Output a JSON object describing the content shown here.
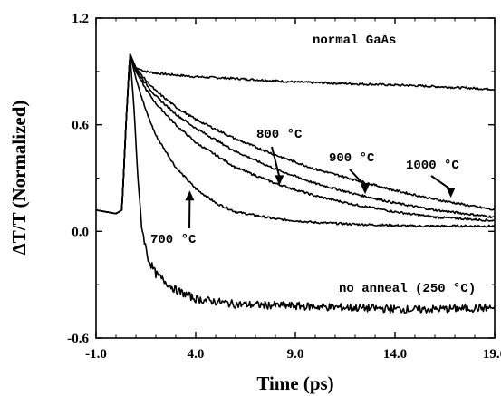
{
  "chart_data": {
    "type": "line",
    "title": "",
    "xlabel": "Time (ps)",
    "ylabel": "ΔT/T (Normalized)",
    "xlim": [
      -1.0,
      19.0
    ],
    "ylim": [
      -0.6,
      1.2
    ],
    "xticks": [
      -1.0,
      4.0,
      9.0,
      14.0,
      19.0
    ],
    "xtick_labels": [
      "-1.0",
      "4.0",
      "9.0",
      "14.0",
      "19.0"
    ],
    "yticks": [
      -0.6,
      0.0,
      0.6,
      1.2
    ],
    "ytick_labels": [
      "-0.6",
      "0.0",
      "0.6",
      "1.2"
    ],
    "grid": false,
    "legend": "none",
    "series": [
      {
        "name": "normal GaAs",
        "x": [
          -1.0,
          0.0,
          0.3,
          0.5,
          0.7,
          1.0,
          1.5,
          2.0,
          4.0,
          6.0,
          9.0,
          12.0,
          15.0,
          17.0,
          19.0
        ],
        "y": [
          0.12,
          0.1,
          0.12,
          0.6,
          1.0,
          0.92,
          0.9,
          0.89,
          0.87,
          0.86,
          0.84,
          0.83,
          0.82,
          0.81,
          0.8
        ]
      },
      {
        "name": "700 °C",
        "x": [
          -1.0,
          0.0,
          0.3,
          0.5,
          0.7,
          1.0,
          1.5,
          2.0,
          3.0,
          4.0,
          5.0,
          6.0,
          8.0,
          10.0,
          12.0,
          15.0,
          19.0
        ],
        "y": [
          0.12,
          0.1,
          0.12,
          0.6,
          1.0,
          0.86,
          0.68,
          0.54,
          0.36,
          0.24,
          0.16,
          0.11,
          0.07,
          0.05,
          0.04,
          0.03,
          0.03
        ]
      },
      {
        "name": "800 °C",
        "x": [
          -1.0,
          0.0,
          0.3,
          0.5,
          0.7,
          1.0,
          1.5,
          2.0,
          3.0,
          4.0,
          6.0,
          8.0,
          10.0,
          12.0,
          14.0,
          16.0,
          19.0
        ],
        "y": [
          0.12,
          0.1,
          0.12,
          0.6,
          1.0,
          0.9,
          0.8,
          0.72,
          0.6,
          0.5,
          0.36,
          0.27,
          0.2,
          0.15,
          0.11,
          0.08,
          0.06
        ]
      },
      {
        "name": "900 °C",
        "x": [
          -1.0,
          0.0,
          0.3,
          0.5,
          0.7,
          1.0,
          1.5,
          2.0,
          3.0,
          4.0,
          6.0,
          8.0,
          10.0,
          12.0,
          14.0,
          16.0,
          19.0
        ],
        "y": [
          0.12,
          0.1,
          0.12,
          0.6,
          1.0,
          0.91,
          0.83,
          0.76,
          0.66,
          0.58,
          0.45,
          0.35,
          0.27,
          0.21,
          0.16,
          0.12,
          0.08
        ]
      },
      {
        "name": "1000 °C",
        "x": [
          -1.0,
          0.0,
          0.3,
          0.5,
          0.7,
          1.0,
          1.5,
          2.0,
          3.0,
          4.0,
          6.0,
          8.0,
          10.0,
          12.0,
          14.0,
          16.0,
          19.0
        ],
        "y": [
          0.12,
          0.1,
          0.12,
          0.6,
          1.0,
          0.92,
          0.85,
          0.79,
          0.7,
          0.63,
          0.52,
          0.43,
          0.35,
          0.29,
          0.23,
          0.18,
          0.12
        ]
      },
      {
        "name": "no anneal (250 °C)",
        "x": [
          -1.0,
          0.0,
          0.3,
          0.5,
          0.7,
          0.9,
          1.1,
          1.3,
          1.6,
          2.0,
          3.0,
          4.0,
          6.0,
          9.0,
          12.0,
          15.0,
          19.0
        ],
        "y": [
          0.12,
          0.1,
          0.12,
          0.6,
          1.0,
          0.7,
          0.3,
          0.02,
          -0.15,
          -0.24,
          -0.33,
          -0.38,
          -0.41,
          -0.42,
          -0.43,
          -0.44,
          -0.43
        ]
      }
    ],
    "annotations": [
      {
        "text": "normal GaAs"
      },
      {
        "text": "800 °C",
        "arrow_to": [
          8.2,
          0.26
        ]
      },
      {
        "text": "900 °C",
        "arrow_to": [
          12.5,
          0.21
        ]
      },
      {
        "text": "1000 °C",
        "arrow_to": [
          16.8,
          0.19
        ]
      },
      {
        "text": "700 °C",
        "arrow_to": [
          3.7,
          0.23
        ]
      },
      {
        "text": "no anneal (250 °C)"
      }
    ]
  }
}
